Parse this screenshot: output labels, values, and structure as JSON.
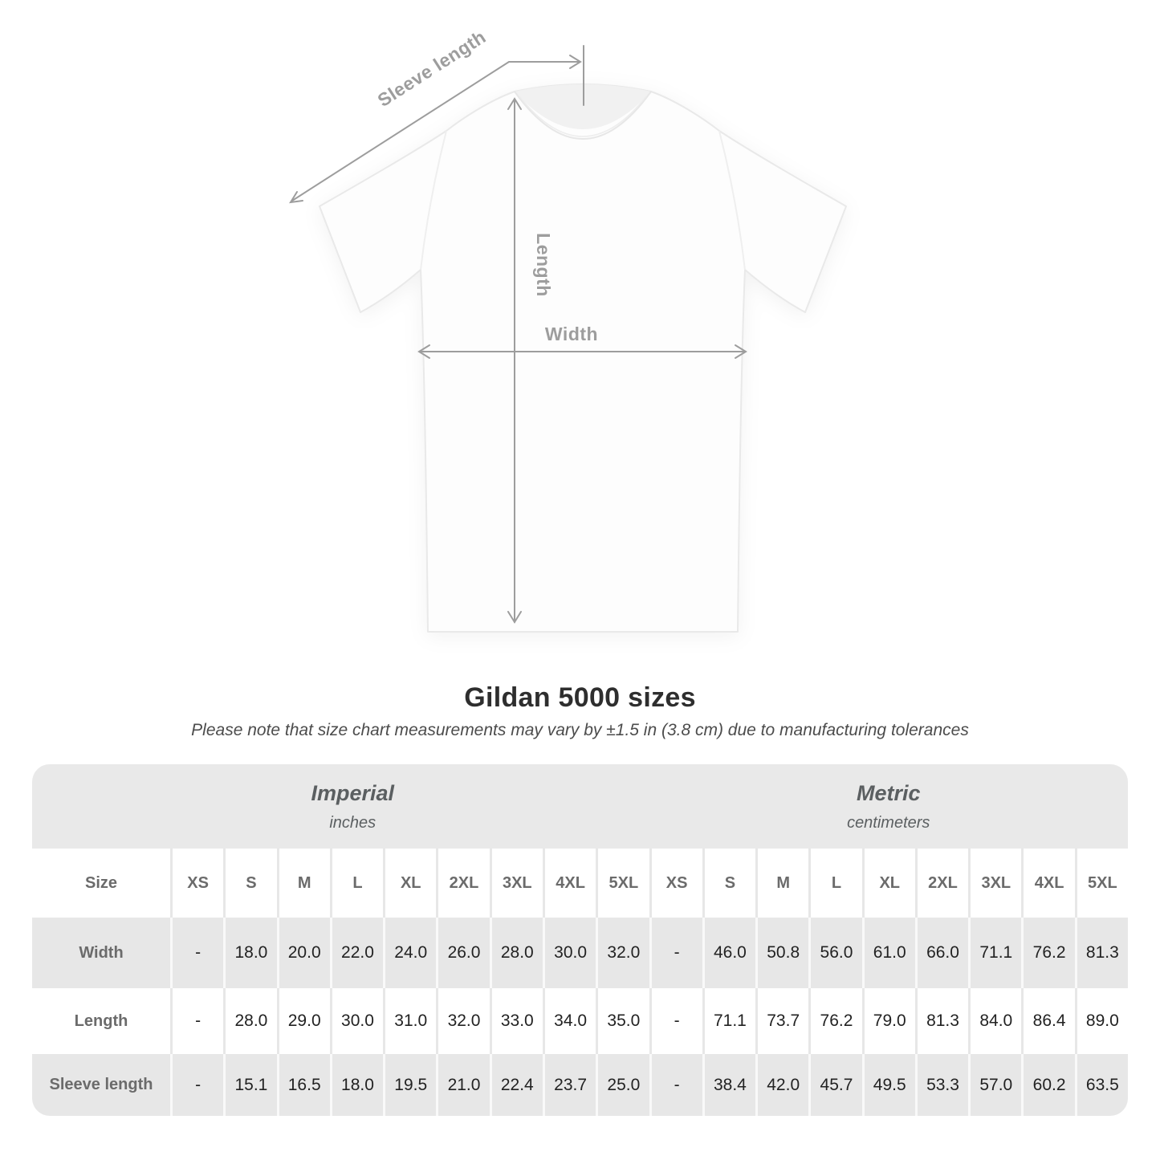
{
  "diagram": {
    "sleeve_length_label": "Sleeve length",
    "length_label": "Length",
    "width_label": "Width"
  },
  "header": {
    "title": "Gildan 5000 sizes",
    "note": "Please note that size chart measurements may vary by ±1.5 in (3.8 cm) due to manufacturing tolerances"
  },
  "chart_data": {
    "type": "table",
    "title": "Gildan 5000 sizes",
    "note": "Please note that size chart measurements may vary by ±1.5 in (3.8 cm) due to manufacturing tolerances",
    "unit_sections": [
      {
        "label": "Imperial",
        "sublabel": "inches"
      },
      {
        "label": "Metric",
        "sublabel": "centimeters"
      }
    ],
    "size_header": "Size",
    "sizes": [
      "XS",
      "S",
      "M",
      "L",
      "XL",
      "2XL",
      "3XL",
      "4XL",
      "5XL"
    ],
    "rows": [
      {
        "label": "Width",
        "imperial": [
          "-",
          "18.0",
          "20.0",
          "22.0",
          "24.0",
          "26.0",
          "28.0",
          "30.0",
          "32.0"
        ],
        "metric": [
          "-",
          "46.0",
          "50.8",
          "56.0",
          "61.0",
          "66.0",
          "71.1",
          "76.2",
          "81.3"
        ]
      },
      {
        "label": "Length",
        "imperial": [
          "-",
          "28.0",
          "29.0",
          "30.0",
          "31.0",
          "32.0",
          "33.0",
          "34.0",
          "35.0"
        ],
        "metric": [
          "-",
          "71.1",
          "73.7",
          "76.2",
          "79.0",
          "81.3",
          "84.0",
          "86.4",
          "89.0"
        ]
      },
      {
        "label": "Sleeve length",
        "imperial": [
          "-",
          "15.1",
          "16.5",
          "18.0",
          "19.5",
          "21.0",
          "22.4",
          "23.7",
          "25.0"
        ],
        "metric": [
          "-",
          "38.4",
          "42.0",
          "45.7",
          "49.5",
          "53.3",
          "57.0",
          "60.2",
          "63.5"
        ]
      }
    ]
  },
  "colors": {
    "annotation_gray": "#9d9d9d",
    "band_gray": "#e9e9e9",
    "row_gray": "#e7e7e7",
    "header_text": "#6b6b6b",
    "value_text": "#222222"
  }
}
